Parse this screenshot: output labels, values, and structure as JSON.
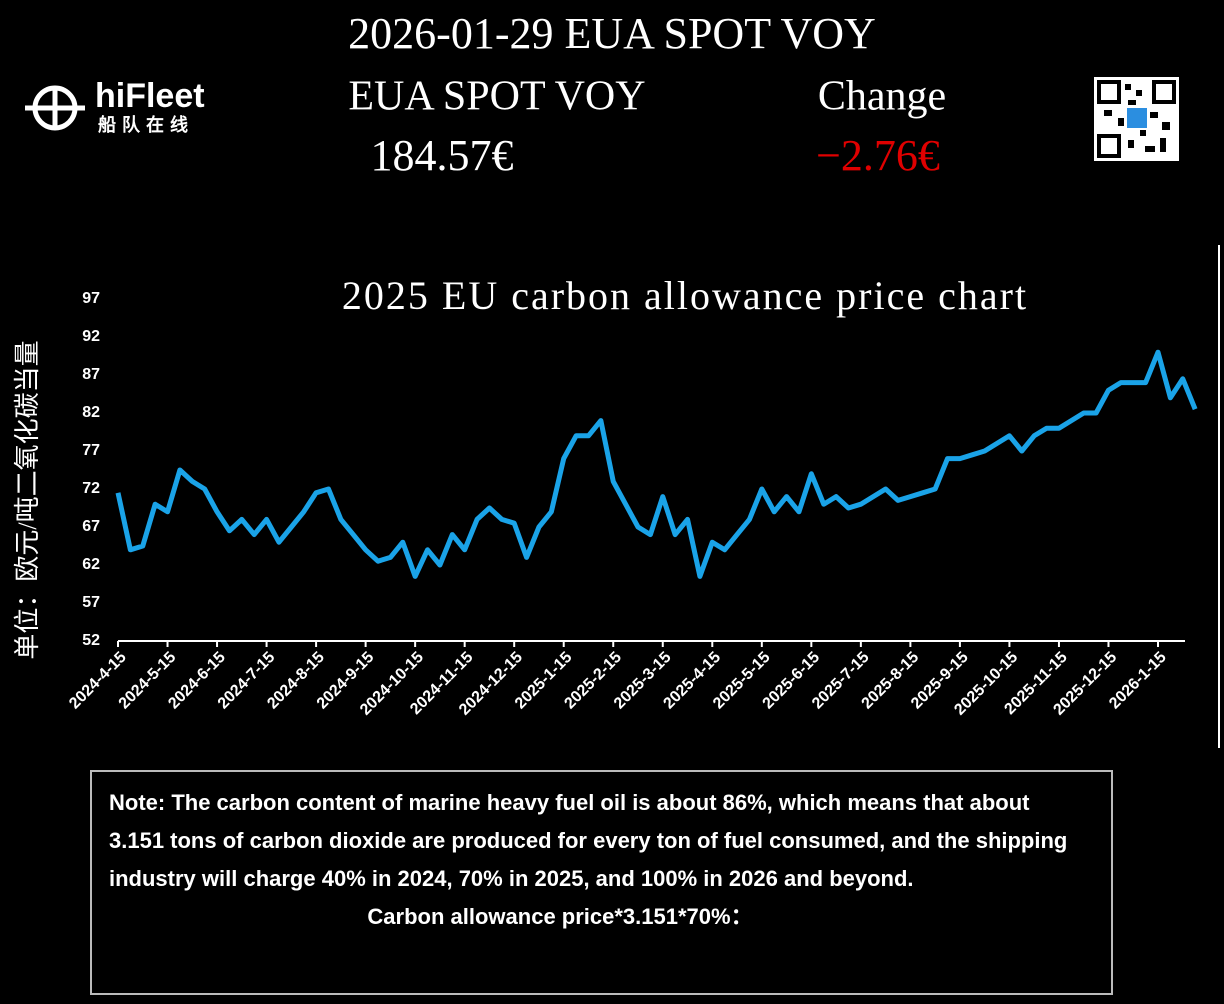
{
  "header": {
    "title": "2026-01-29 EUA SPOT VOY",
    "logo_name": "hiFleet",
    "logo_subtitle": "船队在线",
    "price_label": "EUA SPOT VOY",
    "change_label": "Change",
    "price": "184.57€",
    "change": "−2.76€"
  },
  "chart_data": {
    "type": "line",
    "title": "2025 EU carbon allowance price chart",
    "y_label": "单位：欧元/吨二氧化碳当量",
    "categories": [
      "2024-4-15",
      null,
      null,
      null,
      "2024-5-15",
      null,
      null,
      null,
      "2024-6-15",
      null,
      null,
      null,
      "2024-7-15",
      null,
      null,
      null,
      "2024-8-15",
      null,
      null,
      null,
      "2024-9-15",
      null,
      null,
      null,
      "2024-10-15",
      null,
      null,
      null,
      "2024-11-15",
      null,
      null,
      null,
      "2024-12-15",
      null,
      null,
      null,
      "2025-1-15",
      null,
      null,
      null,
      "2025-2-15",
      null,
      null,
      null,
      "2025-3-15",
      null,
      null,
      null,
      "2025-4-15",
      null,
      null,
      null,
      "2025-5-15",
      null,
      null,
      null,
      "2025-6-15",
      null,
      null,
      null,
      "2025-7-15",
      null,
      null,
      null,
      "2025-8-15",
      null,
      null,
      null,
      "2025-9-15",
      null,
      null,
      null,
      "2025-10-15",
      null,
      null,
      null,
      "2025-11-15",
      null,
      null,
      null,
      "2025-12-15",
      null,
      null,
      null,
      "2026-1-15",
      null,
      null,
      null
    ],
    "series": [
      {
        "name": "EUA",
        "color": "#1aa3e8",
        "values": [
          71.5,
          64,
          64.5,
          70,
          69,
          74.5,
          73,
          72,
          69,
          66.5,
          68,
          66,
          68,
          65,
          67,
          69,
          71.5,
          72,
          68,
          66,
          64,
          62.5,
          63,
          65,
          60.5,
          64,
          62,
          66,
          64,
          68,
          69.5,
          68,
          67.5,
          63,
          67,
          69,
          76,
          79,
          79,
          81,
          73,
          70,
          67,
          66,
          71,
          66,
          68,
          60.5,
          65,
          64,
          66,
          68,
          72,
          69,
          71,
          69,
          74,
          70,
          71,
          69.5,
          70,
          71,
          72,
          70.5,
          71,
          71.5,
          72,
          76,
          76,
          76.5,
          77,
          78,
          79,
          77,
          79,
          80,
          80,
          81,
          82,
          82,
          85,
          86,
          86,
          86,
          90,
          84,
          86.5,
          82.5
        ]
      }
    ],
    "ylim": [
      52,
      97
    ],
    "yticks": [
      52,
      57,
      62,
      67,
      72,
      77,
      82,
      87,
      92,
      97
    ]
  },
  "note": {
    "text": "Note: The carbon content of marine heavy fuel oil is about 86%, which means that about 3.151 tons of carbon dioxide are produced for every ton of fuel consumed, and the shipping industry will charge 40% in 2024, 70% in 2025, and 100% in 2026 and beyond.",
    "formula": "Carbon allowance price*3.151*70%："
  }
}
